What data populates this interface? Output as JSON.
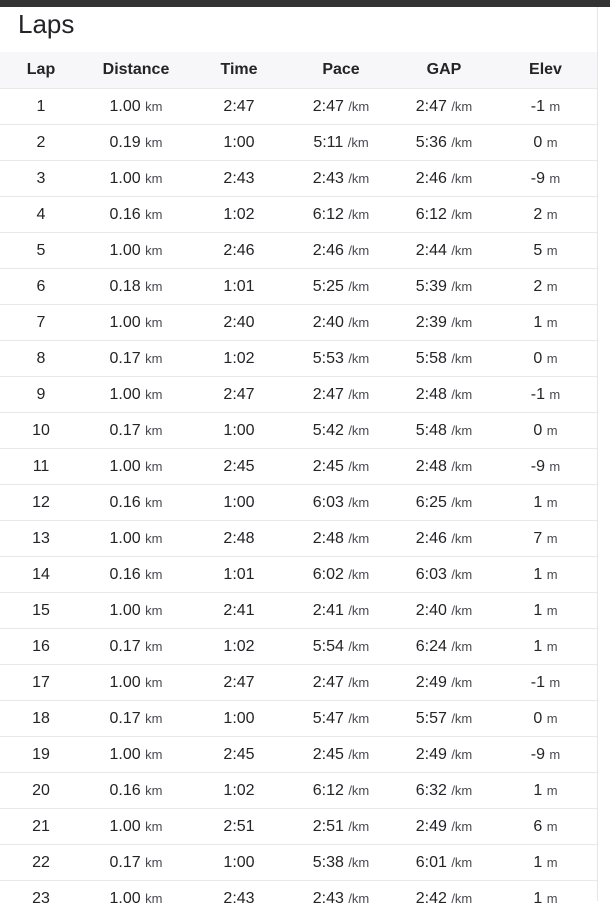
{
  "title": "Laps",
  "columns": [
    "Lap",
    "Distance",
    "Time",
    "Pace",
    "GAP",
    "Elev"
  ],
  "units": {
    "distance": "km",
    "pace": "/km",
    "elev": "m"
  },
  "rows": [
    [
      "1",
      "1.00",
      "2:47",
      "2:47",
      "2:47",
      "-1"
    ],
    [
      "2",
      "0.19",
      "1:00",
      "5:11",
      "5:36",
      "0"
    ],
    [
      "3",
      "1.00",
      "2:43",
      "2:43",
      "2:46",
      "-9"
    ],
    [
      "4",
      "0.16",
      "1:02",
      "6:12",
      "6:12",
      "2"
    ],
    [
      "5",
      "1.00",
      "2:46",
      "2:46",
      "2:44",
      "5"
    ],
    [
      "6",
      "0.18",
      "1:01",
      "5:25",
      "5:39",
      "2"
    ],
    [
      "7",
      "1.00",
      "2:40",
      "2:40",
      "2:39",
      "1"
    ],
    [
      "8",
      "0.17",
      "1:02",
      "5:53",
      "5:58",
      "0"
    ],
    [
      "9",
      "1.00",
      "2:47",
      "2:47",
      "2:48",
      "-1"
    ],
    [
      "10",
      "0.17",
      "1:00",
      "5:42",
      "5:48",
      "0"
    ],
    [
      "11",
      "1.00",
      "2:45",
      "2:45",
      "2:48",
      "-9"
    ],
    [
      "12",
      "0.16",
      "1:00",
      "6:03",
      "6:25",
      "1"
    ],
    [
      "13",
      "1.00",
      "2:48",
      "2:48",
      "2:46",
      "7"
    ],
    [
      "14",
      "0.16",
      "1:01",
      "6:02",
      "6:03",
      "1"
    ],
    [
      "15",
      "1.00",
      "2:41",
      "2:41",
      "2:40",
      "1"
    ],
    [
      "16",
      "0.17",
      "1:02",
      "5:54",
      "6:24",
      "1"
    ],
    [
      "17",
      "1.00",
      "2:47",
      "2:47",
      "2:49",
      "-1"
    ],
    [
      "18",
      "0.17",
      "1:00",
      "5:47",
      "5:57",
      "0"
    ],
    [
      "19",
      "1.00",
      "2:45",
      "2:45",
      "2:49",
      "-9"
    ],
    [
      "20",
      "0.16",
      "1:02",
      "6:12",
      "6:32",
      "1"
    ],
    [
      "21",
      "1.00",
      "2:51",
      "2:51",
      "2:49",
      "6"
    ],
    [
      "22",
      "0.17",
      "1:00",
      "5:38",
      "6:01",
      "1"
    ],
    [
      "23",
      "1.00",
      "2:43",
      "2:43",
      "2:42",
      "1"
    ]
  ]
}
